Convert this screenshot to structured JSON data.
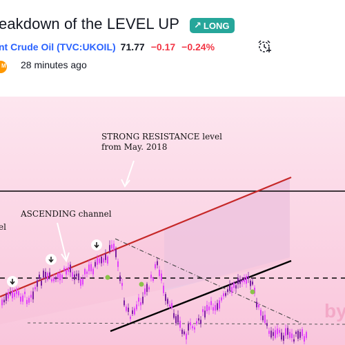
{
  "idea": {
    "title": "eakdown of the LEVEL UP",
    "direction_label": "LONG",
    "direction_icon": "arrow-up-right-icon"
  },
  "symbol": {
    "name": "nt Crude Oil",
    "ticker": "(TVC:UKOIL)",
    "price": "71.77",
    "change": "−0.17",
    "change_percent": "−0.24%",
    "alert_icon": "alarm-clock-icon"
  },
  "author": {
    "avatar_label": "M",
    "published": "28 minutes ago"
  },
  "chart": {
    "background": "#fcd4e4",
    "annotations": {
      "resistance_line1": "STRONG RESISTANCE level",
      "resistance_line2": "from May. 2018",
      "channel": "ASCENDING channel",
      "left_cut_label": "el",
      "watermark": "by"
    },
    "colors": {
      "channel_line": "#c62828",
      "candle_up": "#7b1fa2",
      "candle_down": "#e040fb",
      "marker_green": "#8bc34a",
      "level_line": "#000000"
    }
  }
}
